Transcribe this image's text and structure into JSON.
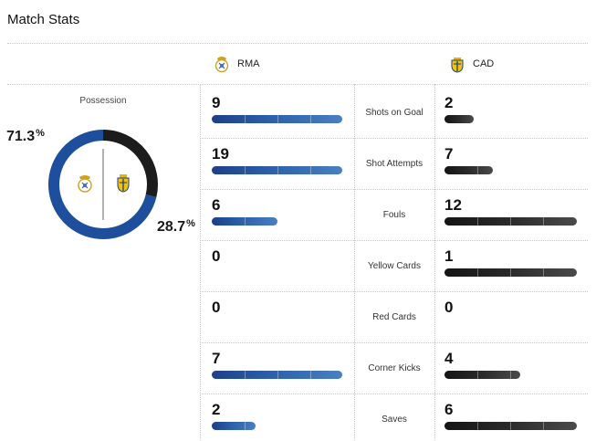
{
  "header": {
    "title": "Match Stats"
  },
  "teams": {
    "home": {
      "abbr": "RMA",
      "color": "#1d4f9c"
    },
    "away": {
      "abbr": "CAD",
      "color": "#1c1c1c"
    }
  },
  "possession": {
    "label": "Possession",
    "home_pct": 71.3,
    "away_pct": 28.7,
    "home_text": "71.3",
    "away_text": "28.7",
    "unit": "%"
  },
  "stats": [
    {
      "label": "Shots on Goal",
      "home": "9",
      "away": "2"
    },
    {
      "label": "Shot Attempts",
      "home": "19",
      "away": "7"
    },
    {
      "label": "Fouls",
      "home": "6",
      "away": "12"
    },
    {
      "label": "Yellow Cards",
      "home": "0",
      "away": "1"
    },
    {
      "label": "Red Cards",
      "home": "0",
      "away": "0"
    },
    {
      "label": "Corner Kicks",
      "home": "7",
      "away": "4"
    },
    {
      "label": "Saves",
      "home": "2",
      "away": "6"
    }
  ]
}
